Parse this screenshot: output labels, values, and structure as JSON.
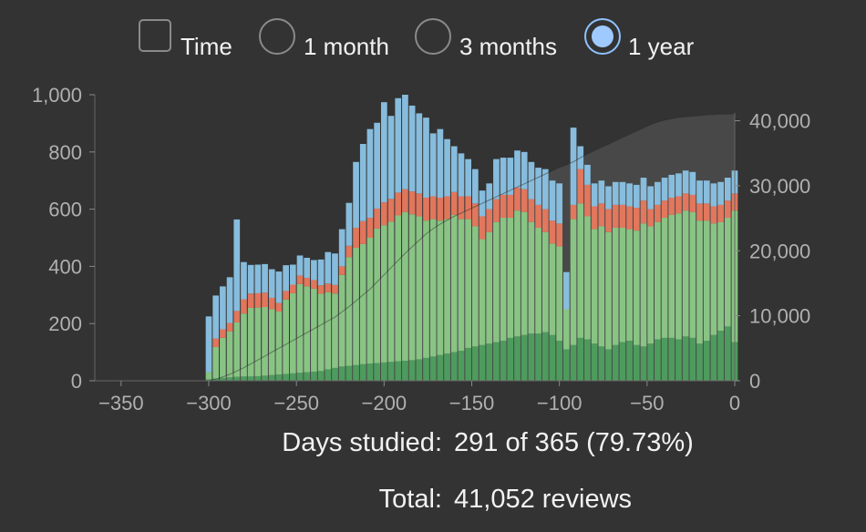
{
  "controls": {
    "time_label": "Time",
    "range_options": [
      {
        "label": "1 month",
        "selected": false
      },
      {
        "label": "3 months",
        "selected": false
      },
      {
        "label": "1 year",
        "selected": true
      }
    ]
  },
  "summary": {
    "days_label": "Days studied:",
    "days_value": "291 of 365 (79.73%)",
    "total_label": "Total:",
    "total_value": "41,052 reviews"
  },
  "colors": {
    "background": "#333333",
    "learn": "#8ec8ea",
    "relearn": "#ef7c5f",
    "young": "#8fcf8a",
    "mature": "#4fa361",
    "cumulative_fill": "#5a5a5a",
    "selected_radio": "#9fcaff"
  },
  "chart_data": {
    "type": "bar",
    "stacked": true,
    "x": [
      -300,
      -296,
      -292,
      -288,
      -284,
      -280,
      -276,
      -272,
      -268,
      -264,
      -260,
      -256,
      -252,
      -248,
      -244,
      -240,
      -236,
      -232,
      -228,
      -224,
      -220,
      -216,
      -212,
      -208,
      -204,
      -200,
      -196,
      -192,
      -188,
      -184,
      -180,
      -176,
      -172,
      -168,
      -164,
      -160,
      -156,
      -152,
      -148,
      -144,
      -140,
      -136,
      -132,
      -128,
      -124,
      -120,
      -116,
      -112,
      -108,
      -104,
      -100,
      -96,
      -92,
      -88,
      -84,
      -80,
      -76,
      -72,
      -68,
      -64,
      -60,
      -56,
      -52,
      -48,
      -44,
      -40,
      -36,
      -32,
      -28,
      -24,
      -20,
      -16,
      -12,
      -8,
      -4,
      0
    ],
    "series": [
      {
        "key": "mature",
        "values": [
          5,
          8,
          10,
          12,
          14,
          15,
          15,
          16,
          18,
          20,
          22,
          24,
          26,
          28,
          30,
          32,
          34,
          40,
          45,
          50,
          52,
          55,
          58,
          60,
          62,
          64,
          66,
          68,
          70,
          72,
          75,
          80,
          85,
          90,
          95,
          100,
          105,
          115,
          120,
          125,
          130,
          135,
          140,
          150,
          155,
          160,
          165,
          165,
          170,
          160,
          140,
          110,
          125,
          150,
          145,
          130,
          120,
          110,
          125,
          135,
          140,
          125,
          120,
          130,
          145,
          150,
          150,
          145,
          155,
          150,
          130,
          140,
          160,
          175,
          190,
          135
        ]
      },
      {
        "key": "young",
        "values": [
          25,
          110,
          140,
          160,
          190,
          220,
          240,
          240,
          240,
          230,
          220,
          260,
          280,
          310,
          300,
          290,
          270,
          270,
          260,
          320,
          380,
          410,
          420,
          440,
          470,
          480,
          490,
          510,
          520,
          510,
          500,
          480,
          480,
          470,
          470,
          480,
          460,
          450,
          420,
          370,
          390,
          420,
          430,
          420,
          440,
          430,
          390,
          370,
          350,
          320,
          330,
          140,
          440,
          470,
          430,
          400,
          420,
          410,
          410,
          400,
          390,
          400,
          430,
          410,
          410,
          420,
          430,
          440,
          440,
          440,
          430,
          420,
          390,
          380,
          380,
          460
        ]
      },
      {
        "key": "relearn",
        "values": [
          0,
          30,
          30,
          30,
          40,
          50,
          50,
          50,
          50,
          40,
          30,
          30,
          30,
          30,
          30,
          30,
          30,
          30,
          30,
          30,
          40,
          70,
          80,
          70,
          70,
          80,
          80,
          80,
          80,
          80,
          80,
          80,
          80,
          80,
          80,
          80,
          80,
          80,
          80,
          80,
          80,
          80,
          80,
          80,
          80,
          80,
          80,
          80,
          80,
          80,
          80,
          0,
          50,
          120,
          110,
          80,
          80,
          80,
          80,
          80,
          80,
          80,
          80,
          60,
          60,
          60,
          60,
          60,
          60,
          60,
          60,
          60,
          60,
          60,
          60,
          60
        ]
      },
      {
        "key": "learn",
        "values": [
          195,
          150,
          150,
          160,
          320,
          130,
          100,
          100,
          100,
          100,
          110,
          90,
          70,
          70,
          70,
          70,
          90,
          110,
          110,
          130,
          150,
          230,
          270,
          310,
          300,
          350,
          290,
          330,
          330,
          300,
          280,
          280,
          220,
          240,
          200,
          160,
          150,
          130,
          120,
          90,
          90,
          140,
          130,
          130,
          130,
          130,
          130,
          130,
          140,
          140,
          140,
          130,
          270,
          80,
          70,
          80,
          80,
          80,
          80,
          80,
          80,
          80,
          80,
          80,
          80,
          80,
          80,
          80,
          80,
          80,
          80,
          80,
          80,
          80,
          80,
          80
        ]
      }
    ],
    "cumulative": [
      0,
      250,
      600,
      1000,
      1500,
      2000,
      2600,
      3200,
      3800,
      4400,
      5000,
      5600,
      6200,
      6800,
      7400,
      8000,
      8600,
      9200,
      9800,
      10600,
      11400,
      12300,
      13200,
      14100,
      15200,
      16300,
      17400,
      18500,
      19600,
      20600,
      21600,
      22600,
      23400,
      24100,
      24700,
      25300,
      25800,
      26300,
      26800,
      27300,
      27800,
      28300,
      28800,
      29300,
      29800,
      30300,
      30800,
      31300,
      31800,
      32300,
      32800,
      33200,
      33700,
      34300,
      34900,
      35400,
      35900,
      36400,
      36900,
      37400,
      37900,
      38400,
      38900,
      39400,
      39800,
      40100,
      40300,
      40500,
      40600,
      40700,
      40800,
      40900,
      40950,
      41000,
      41030,
      41052
    ],
    "xlim": [
      -365,
      0
    ],
    "ylim": [
      0,
      1000
    ],
    "y2lim": [
      0,
      44000
    ],
    "xticks": [
      -350,
      -300,
      -250,
      -200,
      -150,
      -100,
      -50,
      0
    ],
    "xtick_labels": [
      "−350",
      "−300",
      "−250",
      "−200",
      "−150",
      "−100",
      "−50",
      "0"
    ],
    "yticks": [
      0,
      200,
      400,
      600,
      800,
      1000
    ],
    "ytick_labels": [
      "0",
      "200",
      "400",
      "600",
      "800",
      "1,000"
    ],
    "y2ticks": [
      0,
      10000,
      20000,
      30000,
      40000
    ],
    "y2tick_labels": [
      "0",
      "10,000",
      "20,000",
      "30,000",
      "40,000"
    ]
  }
}
